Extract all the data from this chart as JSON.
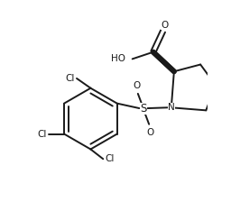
{
  "bg_color": "#ffffff",
  "line_color": "#1a1a1a",
  "bond_width": 1.4,
  "font_size": 7.5,
  "fig_width": 2.56,
  "fig_height": 2.24,
  "dpi": 100,
  "xlim": [
    0,
    256
  ],
  "ylim": [
    0,
    224
  ]
}
